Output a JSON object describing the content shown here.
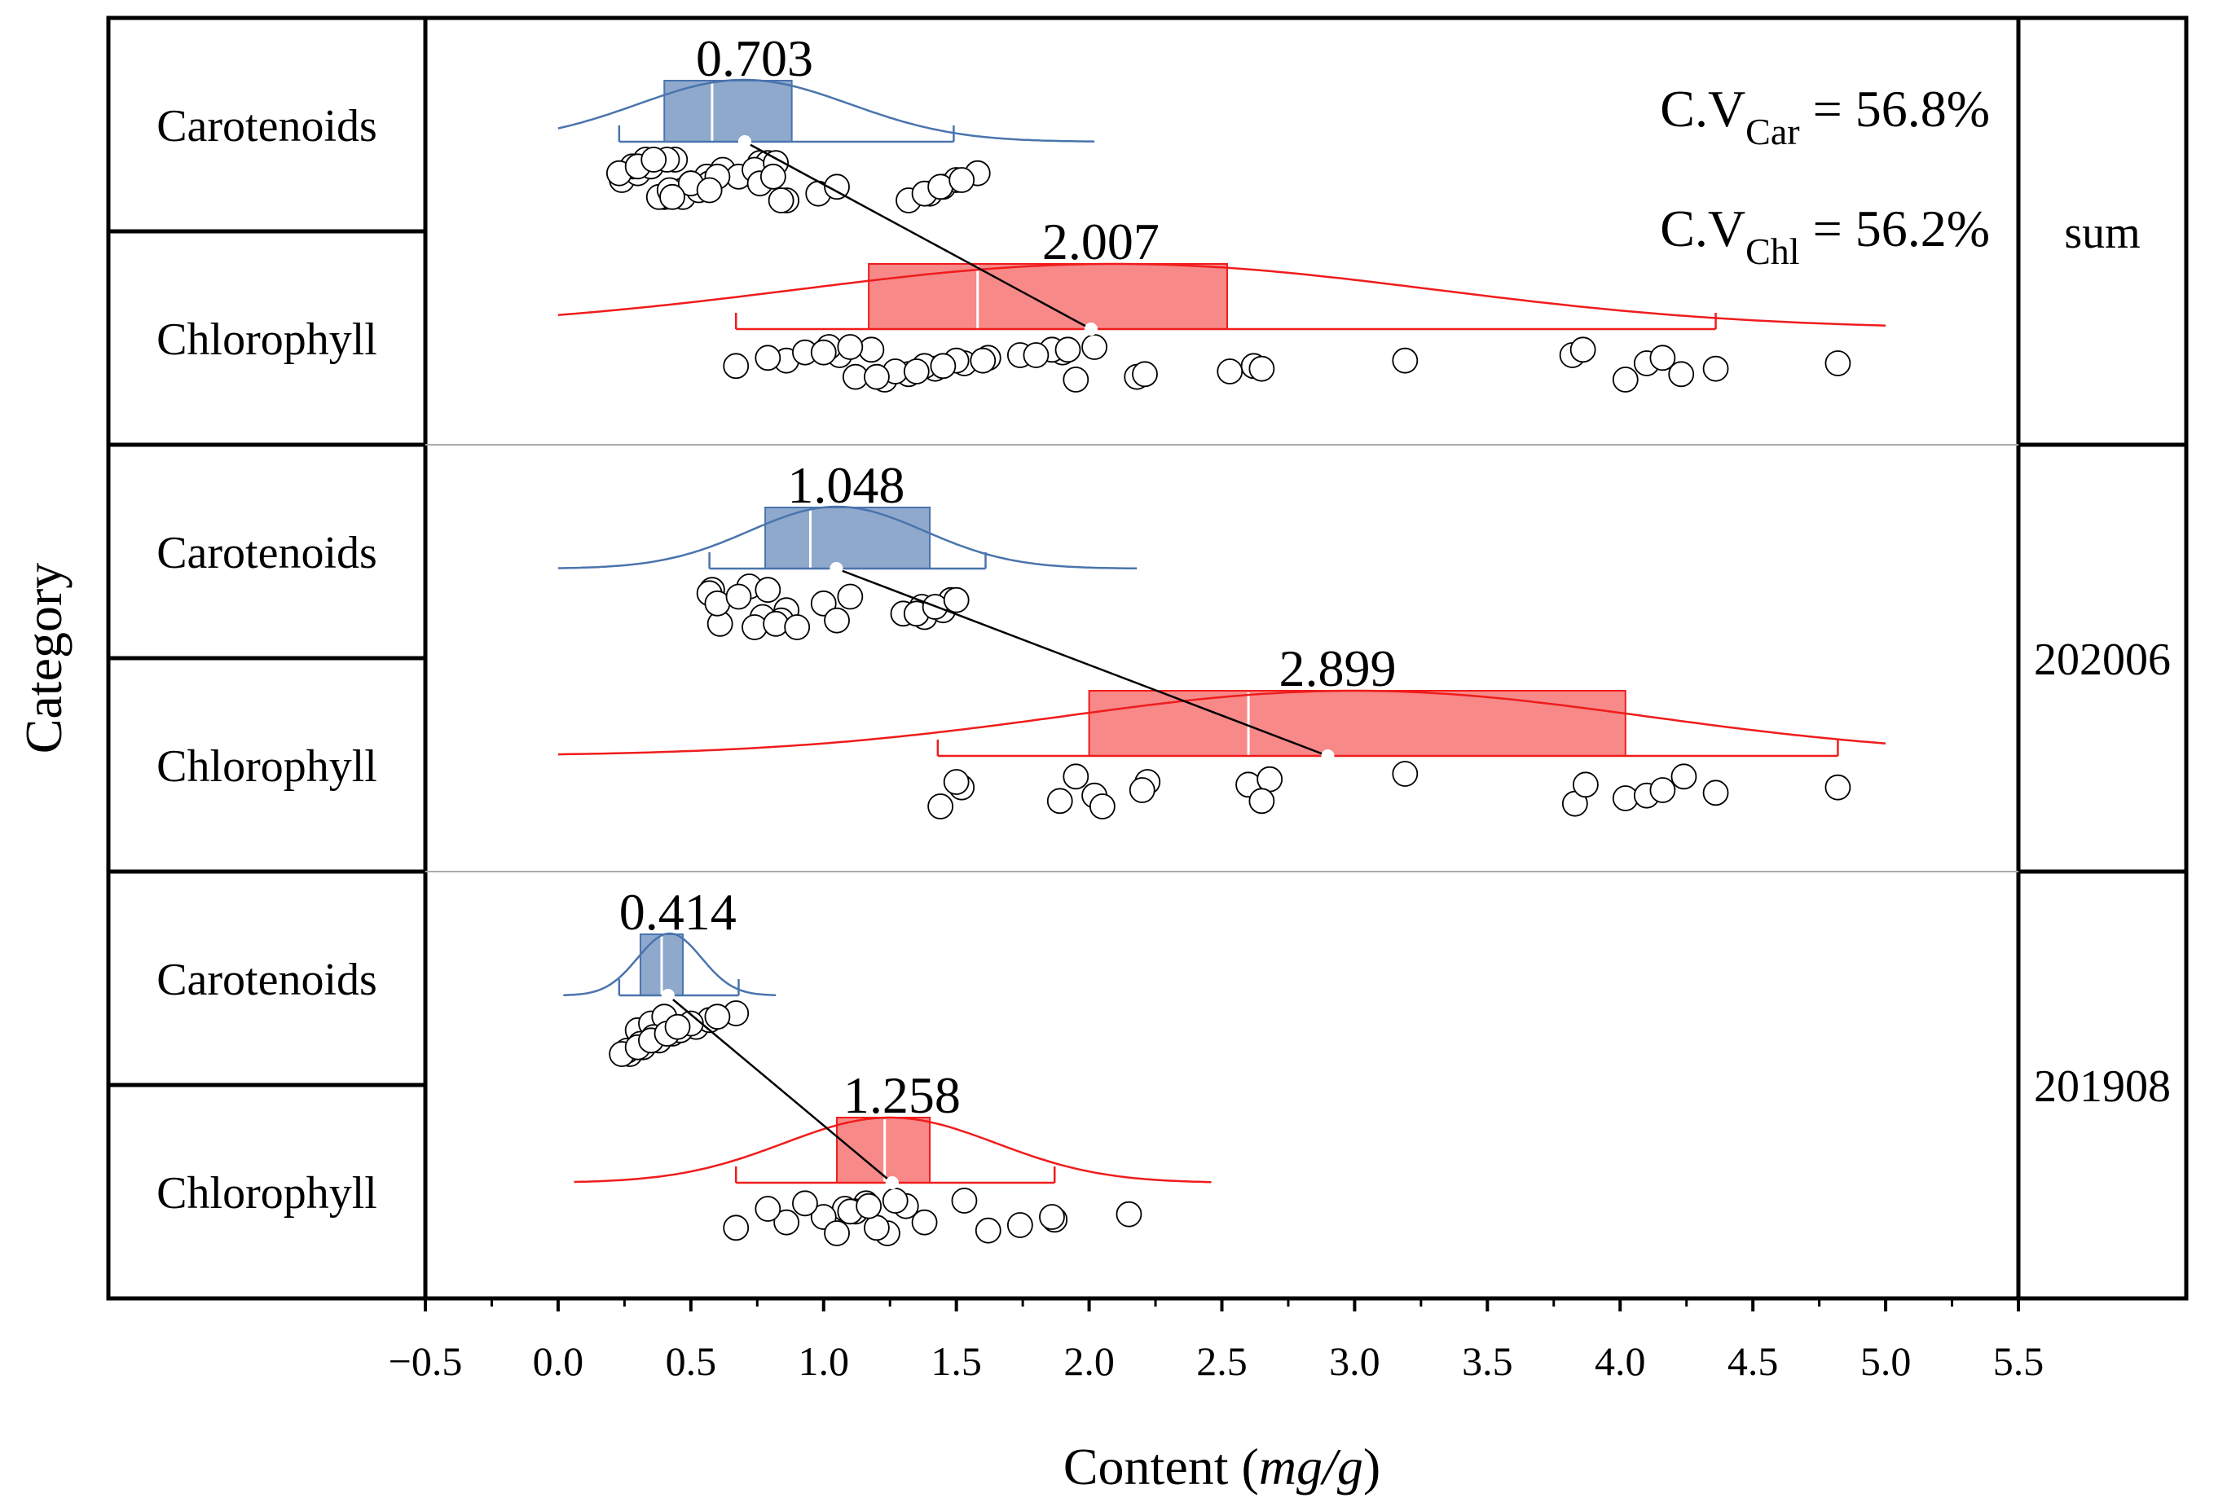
{
  "chart_data": {
    "type": "raincloud",
    "ylabel": "Category",
    "xlabel_prefix": "Content (",
    "xlabel_unit": "mg/g",
    "xlabel_suffix": ")",
    "xlim": [
      -0.5,
      5.5
    ],
    "xticks": [
      -0.5,
      0.0,
      0.5,
      1.0,
      1.5,
      2.0,
      2.5,
      3.0,
      3.5,
      4.0,
      4.5,
      5.0,
      5.5
    ],
    "xtick_labels": [
      "−0.5",
      "0.0",
      "0.5",
      "1.0",
      "1.5",
      "2.0",
      "2.5",
      "3.0",
      "3.5",
      "4.0",
      "4.5",
      "5.0",
      "5.5"
    ],
    "colors": {
      "carotenoids": "#4a74ad",
      "chlorophyll": "#f01c1c",
      "axis": "#000000",
      "separator": "#aaaaaa"
    },
    "cv_annotations": [
      {
        "prefix": "C.V",
        "sub": "Car",
        "suffix": " = 56.8%"
      },
      {
        "prefix": "C.V",
        "sub": "Chl",
        "suffix": " = 56.2%"
      }
    ],
    "groups": [
      {
        "name": "sum",
        "series": [
          {
            "label": "Carotenoids",
            "color_key": "carotenoids",
            "mean": 0.703,
            "mean_label": "0.703",
            "q1": 0.4,
            "median": 0.58,
            "q3": 0.88,
            "whisker_low": 0.23,
            "whisker_high": 1.49,
            "curve_range": [
              0.0,
              2.02
            ],
            "curve_mu": 0.7,
            "curve_sigma": 0.4,
            "points": [
              0.44,
              0.4,
              0.47,
              0.5,
              0.56,
              0.62,
              0.76,
              0.86,
              0.98,
              1.05,
              0.24,
              0.3,
              0.35,
              0.41,
              0.47,
              0.53,
              0.57,
              0.68,
              0.75,
              0.79,
              0.84,
              1.4,
              1.45,
              1.5,
              1.58,
              0.28,
              0.33,
              0.38,
              0.42,
              0.5,
              0.6,
              0.74,
              0.82,
              1.32,
              1.38,
              1.44,
              1.52,
              0.23,
              0.3,
              0.36,
              0.43,
              0.57,
              0.76,
              0.81
            ]
          },
          {
            "label": "Chlorophyll",
            "color_key": "chlorophyll",
            "mean": 2.007,
            "mean_label": "2.007",
            "q1": 1.17,
            "median": 1.58,
            "q3": 2.52,
            "whisker_low": 0.67,
            "whisker_high": 4.36,
            "curve_range": [
              0.0,
              5.0
            ],
            "curve_mu": 2.1,
            "curve_sigma": 1.2,
            "points": [
              0.67,
              0.86,
              1.06,
              1.18,
              1.23,
              1.32,
              1.42,
              1.53,
              1.62,
              1.9,
              2.02,
              2.18,
              2.53,
              2.62,
              3.19,
              3.82,
              3.86,
              4.02,
              4.23,
              4.36,
              4.82,
              0.79,
              0.93,
              1.02,
              1.12,
              1.27,
              1.38,
              1.5,
              1.74,
              1.86,
              1.95,
              2.21,
              2.65,
              4.1,
              4.16,
              1.0,
              1.1,
              1.2,
              1.35,
              1.45,
              1.6,
              1.8,
              1.92
            ]
          }
        ]
      },
      {
        "name": "202006",
        "series": [
          {
            "label": "Carotenoids",
            "color_key": "carotenoids",
            "mean": 1.048,
            "mean_label": "1.048",
            "q1": 0.78,
            "median": 0.95,
            "q3": 1.4,
            "whisker_low": 0.57,
            "whisker_high": 1.61,
            "curve_range": [
              0.0,
              2.18
            ],
            "curve_mu": 1.05,
            "curve_sigma": 0.33,
            "points": [
              0.61,
              0.77,
              0.86,
              1.0,
              1.1,
              0.58,
              0.74,
              0.84,
              1.3,
              1.37,
              1.48,
              0.57,
              0.72,
              0.82,
              1.38,
              1.45,
              0.6,
              0.68,
              0.79,
              0.9,
              1.05,
              1.35,
              1.42,
              1.5
            ]
          },
          {
            "label": "Chlorophyll",
            "color_key": "chlorophyll",
            "mean": 2.899,
            "mean_label": "2.899",
            "q1": 2.0,
            "median": 2.6,
            "q3": 4.02,
            "whisker_low": 1.43,
            "whisker_high": 4.82,
            "curve_range": [
              0.0,
              5.0
            ],
            "curve_mu": 3.0,
            "curve_sigma": 1.1,
            "points": [
              1.52,
              2.22,
              4.24,
              1.44,
              1.89,
              2.02,
              2.2,
              2.6,
              2.68,
              3.19,
              3.83,
              4.02,
              4.36,
              4.82,
              1.5,
              1.95,
              2.05,
              2.65,
              4.1,
              4.16,
              3.87
            ]
          }
        ]
      },
      {
        "name": "201908",
        "series": [
          {
            "label": "Carotenoids",
            "color_key": "carotenoids",
            "mean": 0.414,
            "mean_label": "0.414",
            "q1": 0.31,
            "median": 0.39,
            "q3": 0.47,
            "whisker_low": 0.23,
            "whisker_high": 0.68,
            "curve_range": [
              0.02,
              0.82
            ],
            "curve_mu": 0.42,
            "curve_sigma": 0.12,
            "points": [
              0.33,
              0.36,
              0.3,
              0.35,
              0.4,
              0.27,
              0.32,
              0.38,
              0.43,
              0.52,
              0.57,
              0.67,
              0.26,
              0.31,
              0.36,
              0.46,
              0.5,
              0.6,
              0.24,
              0.3,
              0.35,
              0.41,
              0.45
            ]
          },
          {
            "label": "Chlorophyll",
            "color_key": "chlorophyll",
            "mean": 1.258,
            "mean_label": "1.258",
            "q1": 1.05,
            "median": 1.23,
            "q3": 1.4,
            "whisker_low": 0.67,
            "whisker_high": 1.87,
            "curve_range": [
              0.06,
              2.46
            ],
            "curve_mu": 1.25,
            "curve_sigma": 0.4,
            "points": [
              1.08,
              1.16,
              1.24,
              0.67,
              0.86,
              1.0,
              1.12,
              1.31,
              1.53,
              1.62,
              1.74,
              1.87,
              2.15,
              0.79,
              0.93,
              1.05,
              1.2,
              1.38,
              1.86,
              1.1,
              1.17,
              1.27
            ]
          }
        ]
      }
    ]
  }
}
